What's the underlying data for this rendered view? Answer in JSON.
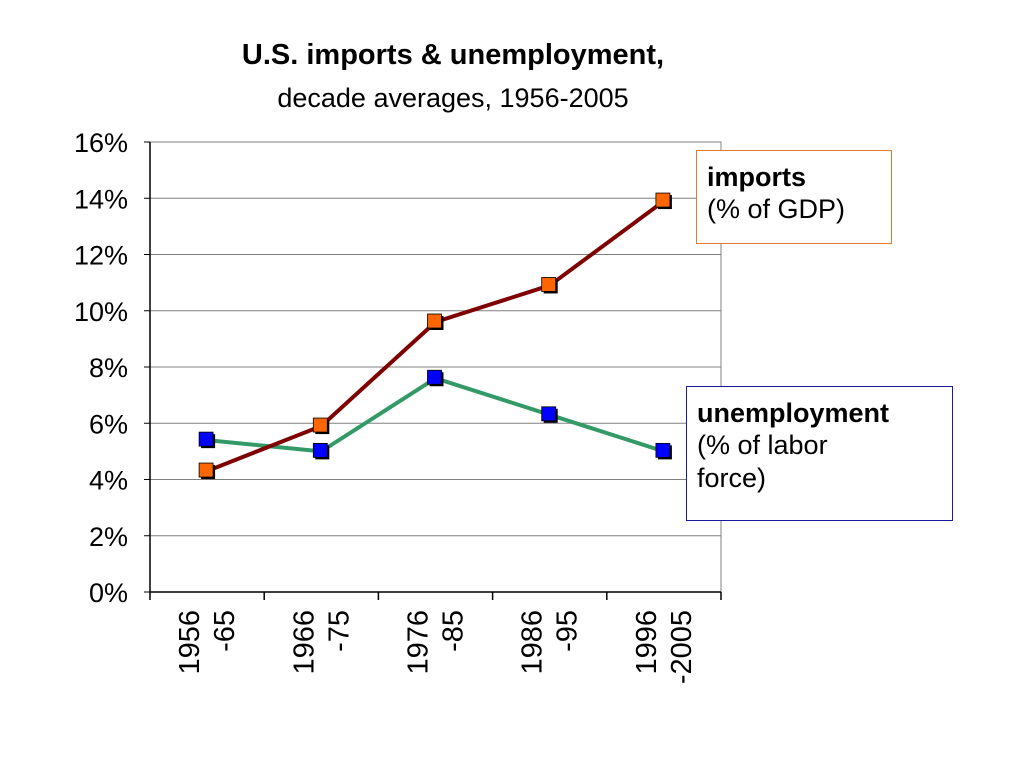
{
  "chart_data": {
    "type": "line",
    "title": "U.S. imports & unemployment,",
    "subtitle": "decade averages, 1956-2005",
    "categories": [
      [
        "1956",
        "-65"
      ],
      [
        "1966",
        "-75"
      ],
      [
        "1976",
        "-85"
      ],
      [
        "1986",
        "-95"
      ],
      [
        "1996",
        "-2005"
      ]
    ],
    "ylim": [
      0,
      16
    ],
    "yticks": [
      "0%",
      "2%",
      "4%",
      "6%",
      "8%",
      "10%",
      "12%",
      "14%",
      "16%"
    ],
    "grid": true,
    "series": [
      {
        "name": "imports",
        "unit_label": "(% of GDP)",
        "values": [
          4.3,
          5.9,
          9.6,
          10.9,
          13.9
        ],
        "line_color": "#7f0000",
        "marker_color": "#ff6600"
      },
      {
        "name": "unemployment",
        "unit_label_lines": [
          "(% of labor",
          "force)"
        ],
        "values": [
          5.4,
          5.0,
          7.6,
          6.3,
          5.0
        ],
        "line_color": "#339966",
        "marker_color": "#0000ff"
      }
    ]
  }
}
